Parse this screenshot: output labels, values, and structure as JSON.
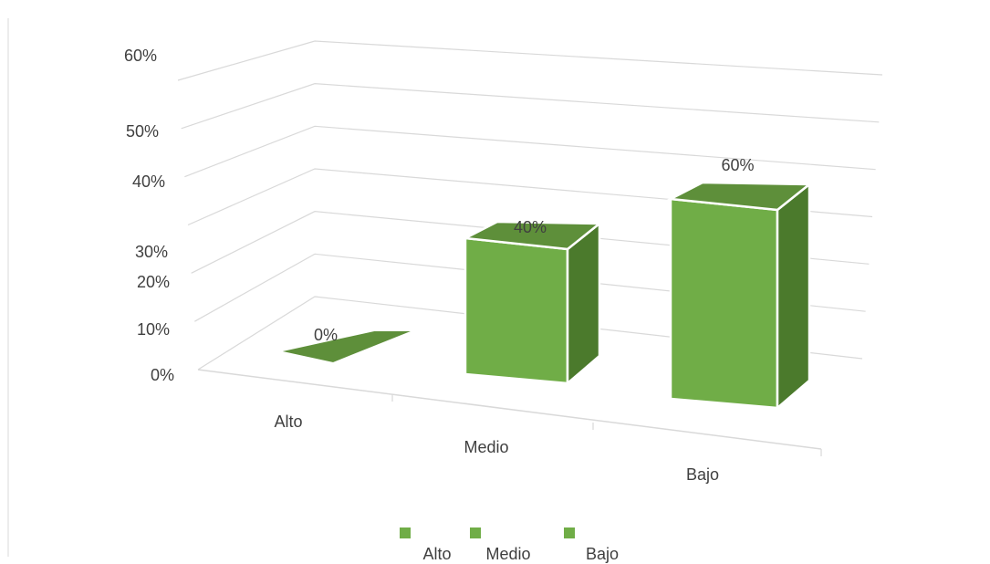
{
  "chart_data": {
    "type": "bar",
    "categories": [
      "Alto",
      "Medio",
      "Bajo"
    ],
    "values": [
      0,
      40,
      60
    ],
    "data_labels": [
      "0%",
      "40%",
      "60%"
    ],
    "y_ticks": [
      "0%",
      "10%",
      "20%",
      "30%",
      "40%",
      "50%",
      "60%"
    ],
    "ylim": [
      0,
      60
    ],
    "grid": true,
    "legend": {
      "placement": "bottom",
      "entries": [
        "Alto",
        "Medio",
        "Bajo"
      ]
    },
    "style": "3d-column"
  },
  "colors": {
    "bar_front": "#70AD47",
    "bar_top": "#5E8F3A",
    "bar_side": "#4B7A2C",
    "grid": "#D9D9D9",
    "text": "#404040"
  }
}
